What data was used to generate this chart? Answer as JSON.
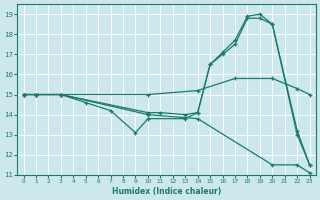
{
  "xlabel": "Humidex (Indice chaleur)",
  "bg_color": "#cce8ec",
  "grid_color": "#ffffff",
  "line_color": "#1a7a6e",
  "xlim": [
    -0.5,
    23.5
  ],
  "ylim": [
    11,
    19.5
  ],
  "xticks": [
    0,
    1,
    2,
    3,
    4,
    5,
    6,
    7,
    8,
    9,
    10,
    11,
    12,
    13,
    14,
    15,
    16,
    17,
    18,
    19,
    20,
    21,
    22,
    23
  ],
  "yticks": [
    11,
    12,
    13,
    14,
    15,
    16,
    17,
    18,
    19
  ],
  "lines": [
    {
      "x": [
        0,
        1,
        3,
        10,
        14,
        20,
        22,
        23
      ],
      "y": [
        15,
        15,
        15,
        14,
        13.8,
        11.5,
        11.5,
        11.1
      ]
    },
    {
      "x": [
        0,
        1,
        3,
        10,
        14,
        17,
        20,
        22,
        23
      ],
      "y": [
        15,
        15,
        15,
        15,
        15.2,
        15.8,
        15.8,
        15.3,
        15.0
      ]
    },
    {
      "x": [
        0,
        1,
        3,
        10,
        11,
        13,
        14,
        15,
        16,
        17,
        18,
        19,
        20,
        22,
        23
      ],
      "y": [
        15,
        15,
        15,
        14.1,
        14.1,
        14.0,
        14.1,
        16.5,
        17.0,
        17.5,
        18.8,
        18.8,
        18.5,
        13.2,
        11.5
      ]
    },
    {
      "x": [
        0,
        1,
        3,
        5,
        7,
        9,
        10,
        13,
        14,
        15,
        16,
        17,
        18,
        19,
        20,
        22,
        23
      ],
      "y": [
        15,
        15,
        15,
        14.6,
        14.2,
        13.1,
        13.8,
        13.8,
        14.1,
        16.5,
        17.1,
        17.7,
        18.9,
        19.0,
        18.5,
        13.0,
        11.5
      ]
    }
  ]
}
